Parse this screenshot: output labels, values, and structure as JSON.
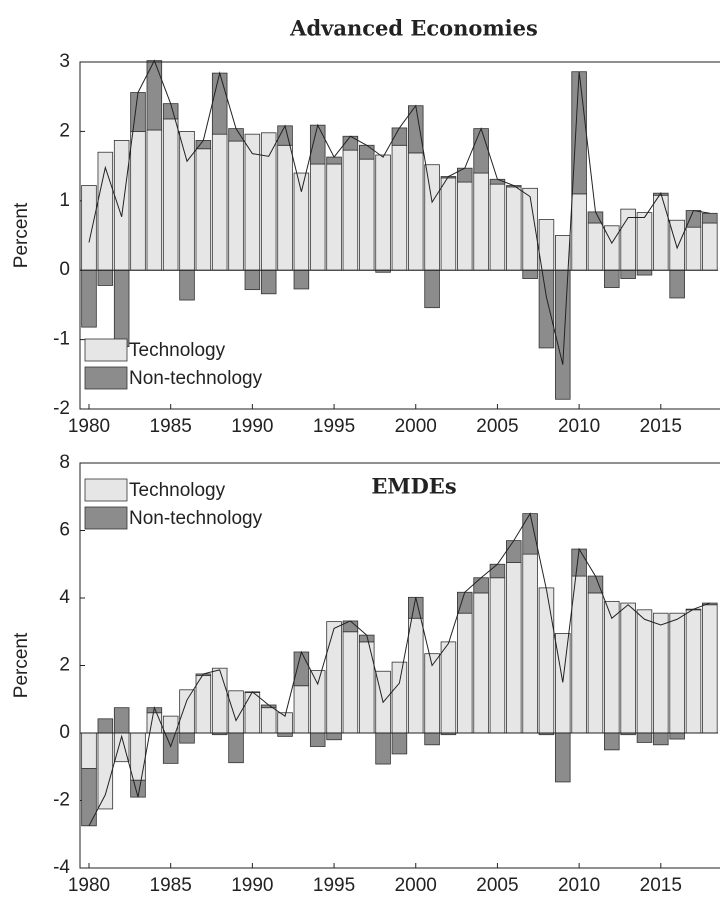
{
  "chart_data": [
    {
      "type": "bar",
      "title": "Advanced Economies",
      "y_label": "Percent",
      "x": [
        1980,
        1981,
        1982,
        1983,
        1984,
        1985,
        1986,
        1987,
        1988,
        1989,
        1990,
        1991,
        1992,
        1993,
        1994,
        1995,
        1996,
        1997,
        1998,
        1999,
        2000,
        2001,
        2002,
        2003,
        2004,
        2005,
        2006,
        2007,
        2008,
        2009,
        2010,
        2011,
        2012,
        2013,
        2014,
        2015,
        2016,
        2017,
        2018
      ],
      "series": [
        {
          "name": "Technology",
          "color": "#e6e6e6",
          "values": [
            1.22,
            1.7,
            1.87,
            2.0,
            2.02,
            2.18,
            2.0,
            1.75,
            1.96,
            1.86,
            1.96,
            1.98,
            1.8,
            1.4,
            1.53,
            1.53,
            1.73,
            1.6,
            1.66,
            1.8,
            1.69,
            1.52,
            1.33,
            1.27,
            1.4,
            1.24,
            1.2,
            1.18,
            0.73,
            0.5,
            1.1,
            0.68,
            0.64,
            0.88,
            0.83,
            1.08,
            0.72,
            0.62,
            0.68
          ]
        },
        {
          "name": "Non-technology",
          "color": "#8c8c8c",
          "values": [
            -0.82,
            -0.22,
            -1.1,
            0.56,
            1.0,
            0.22,
            -0.43,
            0.12,
            0.88,
            0.18,
            -0.28,
            -0.34,
            0.28,
            -0.27,
            0.56,
            0.1,
            0.2,
            0.2,
            -0.03,
            0.25,
            0.68,
            -0.54,
            0.02,
            0.2,
            0.64,
            0.07,
            0.02,
            -0.12,
            -1.12,
            -1.86,
            1.76,
            0.16,
            -0.25,
            -0.12,
            -0.07,
            0.03,
            -0.4,
            0.24,
            0.14
          ]
        }
      ],
      "total": [
        0.4,
        1.48,
        0.77,
        2.56,
        3.02,
        2.4,
        1.57,
        1.87,
        2.84,
        2.04,
        1.68,
        1.64,
        2.08,
        1.13,
        2.09,
        1.63,
        1.93,
        1.8,
        1.63,
        2.05,
        2.37,
        0.98,
        1.35,
        1.47,
        2.04,
        1.31,
        1.22,
        1.06,
        -0.39,
        -1.36,
        2.86,
        0.84,
        0.39,
        0.76,
        0.76,
        1.11,
        0.32,
        0.86,
        0.82
      ],
      "line_color": "#222222",
      "xlim": [
        1979.45,
        2018.5
      ],
      "xticks": [
        1980,
        1985,
        1990,
        1995,
        2000,
        2005,
        2010,
        2015
      ],
      "ylim": [
        -2,
        3
      ],
      "yticks": [
        -2,
        -1,
        0,
        1,
        2,
        3
      ],
      "legend": "lower left"
    },
    {
      "type": "bar",
      "title": "EMDEs",
      "y_label": "Percent",
      "x": [
        1980,
        1981,
        1982,
        1983,
        1984,
        1985,
        1986,
        1987,
        1988,
        1989,
        1990,
        1991,
        1992,
        1993,
        1994,
        1995,
        1996,
        1997,
        1998,
        1999,
        2000,
        2001,
        2002,
        2003,
        2004,
        2005,
        2006,
        2007,
        2008,
        2009,
        2010,
        2011,
        2012,
        2013,
        2014,
        2015,
        2016,
        2017,
        2018
      ],
      "series": [
        {
          "name": "Technology",
          "color": "#e6e6e6",
          "values": [
            -1.05,
            -2.25,
            -0.85,
            -1.4,
            0.6,
            0.5,
            1.28,
            1.7,
            1.92,
            1.25,
            1.2,
            0.75,
            0.6,
            1.4,
            1.85,
            3.3,
            3.0,
            2.7,
            1.83,
            2.1,
            3.4,
            2.35,
            2.7,
            3.55,
            4.15,
            4.6,
            5.05,
            5.3,
            4.3,
            2.95,
            4.65,
            4.15,
            3.9,
            3.85,
            3.65,
            3.55,
            3.55,
            3.65,
            3.8
          ]
        },
        {
          "name": "Non-technology",
          "color": "#8c8c8c",
          "values": [
            -1.7,
            0.42,
            0.75,
            -0.5,
            0.15,
            -0.9,
            -0.3,
            0.05,
            -0.05,
            -0.88,
            0.02,
            0.08,
            -0.1,
            1.0,
            -0.4,
            -0.2,
            0.32,
            0.2,
            -0.92,
            -0.62,
            0.62,
            -0.35,
            -0.05,
            0.62,
            0.45,
            0.4,
            0.65,
            1.2,
            -0.05,
            -1.45,
            0.8,
            0.5,
            -0.5,
            -0.05,
            -0.28,
            -0.35,
            -0.18,
            0.02,
            0.05
          ]
        }
      ],
      "total": [
        -2.75,
        -1.83,
        -0.1,
        -1.9,
        0.75,
        -0.4,
        0.98,
        1.75,
        1.87,
        0.37,
        1.22,
        0.83,
        0.5,
        2.4,
        1.45,
        3.1,
        3.32,
        2.9,
        0.91,
        1.48,
        4.02,
        2.0,
        2.65,
        4.17,
        4.6,
        5.0,
        5.7,
        6.5,
        4.25,
        1.5,
        5.45,
        4.65,
        3.4,
        3.8,
        3.37,
        3.2,
        3.37,
        3.67,
        3.85
      ],
      "line_color": "#222222",
      "xlim": [
        1979.45,
        2018.5
      ],
      "xticks": [
        1980,
        1985,
        1990,
        1995,
        2000,
        2005,
        2010,
        2015
      ],
      "ylim": [
        -4,
        8
      ],
      "yticks": [
        -4,
        -2,
        0,
        2,
        4,
        6,
        8
      ],
      "legend": "upper left"
    }
  ]
}
